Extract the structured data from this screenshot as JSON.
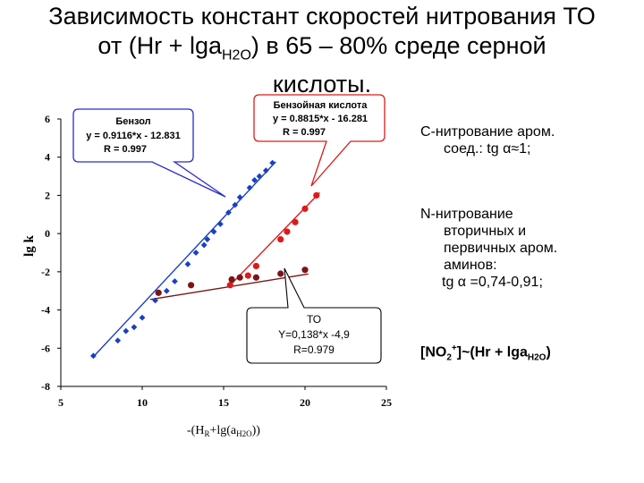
{
  "title": {
    "line1": "Зависимость констант скоростей нитрования ТО",
    "line2_pre": "от (Hr + lga",
    "line2_sub": "H2O",
    "line2_post": ") в 65 – 80% среде серной",
    "line3": "кислоты."
  },
  "notes": {
    "c_nitration_line1": "С-нитрование аром.",
    "c_nitration_line2": "соед.: tg α≈1;",
    "n_nitration_line1": "N-нитрование",
    "n_nitration_line2": "вторичных и",
    "n_nitration_line3": "первичных аром.",
    "n_nitration_line4": "аминов:",
    "n_nitration_line5": "tg α =0,74-0,91;",
    "formula_pre": "[NO",
    "formula_sub1": "2",
    "formula_sup": "+",
    "formula_mid": "]~(Hr + lga",
    "formula_sub2": "H2O",
    "formula_post": ")"
  },
  "chart_data": {
    "type": "scatter",
    "xlabel": "-(H",
    "xlabel_sub1": "R",
    "xlabel_mid": "+lg(a",
    "xlabel_sub2": "H2O",
    "xlabel_post": "))",
    "ylabel": "lg k",
    "xlim": [
      5,
      25
    ],
    "ylim": [
      -8,
      6
    ],
    "xticks": [
      5,
      10,
      15,
      20,
      25
    ],
    "yticks": [
      6,
      4,
      2,
      0,
      -2,
      -4,
      -6,
      -8
    ],
    "series": [
      {
        "name": "Бензол",
        "color": "#1a3fc4",
        "marker": "diamond",
        "x": [
          7.0,
          8.5,
          9.0,
          9.5,
          10.0,
          10.8,
          11.5,
          12.0,
          12.8,
          13.3,
          13.8,
          14.0,
          14.4,
          14.8,
          15.3,
          15.7,
          16.0,
          16.6,
          16.9,
          17.2,
          17.6,
          18.0
        ],
        "y": [
          -6.4,
          -5.6,
          -5.1,
          -4.9,
          -4.4,
          -3.5,
          -3.0,
          -2.5,
          -1.6,
          -1.0,
          -0.6,
          -0.3,
          0.1,
          0.5,
          1.1,
          1.5,
          1.9,
          2.4,
          2.8,
          3.0,
          3.3,
          3.7
        ],
        "fit": {
          "slope": 0.9116,
          "intercept": -12.831,
          "from": 7.0,
          "to": 18.2
        }
      },
      {
        "name": "Бензойная кислота",
        "color": "#dd1a1a",
        "marker": "circle",
        "x": [
          15.4,
          16.5,
          17.0,
          18.5,
          18.9,
          19.4,
          20.0,
          20.7
        ],
        "y": [
          -2.7,
          -2.2,
          -1.7,
          -0.3,
          0.1,
          0.6,
          1.3,
          2.0
        ],
        "fit": {
          "slope": 0.8815,
          "intercept": -16.281,
          "from": 15.3,
          "to": 20.9
        }
      },
      {
        "name": "ТО",
        "color": "#7a1515",
        "marker": "circle",
        "x": [
          11.0,
          13.0,
          15.5,
          16.0,
          17.0,
          18.5,
          20.0
        ],
        "y": [
          -3.1,
          -2.7,
          -2.4,
          -2.3,
          -2.3,
          -2.1,
          -1.9
        ],
        "fit": {
          "slope": 0.138,
          "intercept": -4.9,
          "from": 10.5,
          "to": 20.2
        }
      }
    ],
    "annotations": [
      {
        "name": "benzene",
        "line1": "Бензол",
        "line2": "y = 0.9116*x - 12.831",
        "line3": "R = 0.997"
      },
      {
        "name": "benzoic",
        "line1": "Бензойная кислота",
        "line2": "y = 0.8815*x - 16.281",
        "line3": "R = 0.997"
      },
      {
        "name": "to",
        "line1": "ТО",
        "line2": "Y=0,138*x -4,9",
        "line3": "R=0.979"
      }
    ]
  }
}
